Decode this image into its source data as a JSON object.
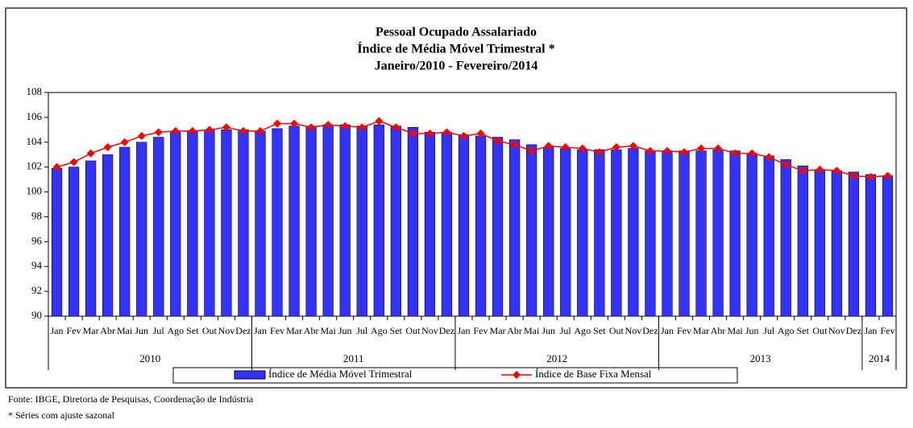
{
  "chart_data": {
    "type": "bar-line",
    "title": [
      "Pessoal Ocupado Assalariado",
      "Índice de Média Móvel Trimestral *",
      "Janeiro/2010 - Fevereiro/2014"
    ],
    "categories": [
      "Jan",
      "Fev",
      "Mar",
      "Abr",
      "Mai",
      "Jun",
      "Jul",
      "Ago",
      "Set",
      "Out",
      "Nov",
      "Dez",
      "Jan",
      "Fev",
      "Mar",
      "Abr",
      "Mai",
      "Jun",
      "Jul",
      "Ago",
      "Set",
      "Out",
      "Nov",
      "Dez",
      "Jan",
      "Fev",
      "Mar",
      "Abr",
      "Mai",
      "Jun",
      "Jul",
      "Ago",
      "Set",
      "Out",
      "Nov",
      "Dez",
      "Jan",
      "Fev",
      "Mar",
      "Abr",
      "Mai",
      "Jun",
      "Jul",
      "Ago",
      "Set",
      "Out",
      "Nov",
      "Dez",
      "Jan",
      "Fev"
    ],
    "year_labels": [
      "2010",
      null,
      null,
      null,
      null,
      null,
      null,
      null,
      null,
      null,
      null,
      null,
      "2011",
      null,
      null,
      null,
      null,
      null,
      null,
      null,
      null,
      null,
      null,
      null,
      "2012",
      null,
      null,
      null,
      null,
      null,
      null,
      null,
      null,
      null,
      null,
      null,
      "2013",
      null,
      null,
      null,
      null,
      null,
      null,
      null,
      null,
      null,
      null,
      null,
      "2014",
      null
    ],
    "series": [
      {
        "name": "Índice de Média Móvel Trimestral",
        "kind": "bar",
        "color": "#3333ff",
        "values": [
          101.9,
          102.0,
          102.5,
          103.0,
          103.6,
          104.0,
          104.4,
          104.8,
          104.9,
          105.0,
          105.0,
          105.0,
          104.9,
          105.1,
          105.3,
          105.3,
          105.4,
          105.4,
          105.3,
          105.4,
          105.3,
          105.2,
          104.8,
          104.8,
          104.6,
          104.5,
          104.4,
          104.2,
          103.8,
          103.6,
          103.5,
          103.4,
          103.4,
          103.4,
          103.5,
          103.3,
          103.3,
          103.3,
          103.3,
          103.4,
          103.3,
          103.1,
          102.9,
          102.6,
          102.1,
          101.8,
          101.7,
          101.6,
          101.4,
          101.3
        ]
      },
      {
        "name": "Índice de Base Fixa Mensal",
        "kind": "line",
        "color": "#ff0000",
        "values": [
          102.0,
          102.4,
          103.1,
          103.6,
          104.0,
          104.5,
          104.8,
          104.9,
          104.9,
          105.0,
          105.2,
          104.9,
          104.9,
          105.5,
          105.5,
          105.2,
          105.4,
          105.3,
          105.2,
          105.7,
          105.2,
          104.7,
          104.7,
          104.8,
          104.5,
          104.7,
          104.1,
          103.8,
          103.3,
          103.7,
          103.6,
          103.5,
          103.2,
          103.6,
          103.7,
          103.3,
          103.3,
          103.2,
          103.5,
          103.5,
          103.1,
          103.1,
          102.8,
          102.2,
          101.7,
          101.8,
          101.7,
          101.3,
          101.2,
          101.3
        ]
      }
    ],
    "ylim": [
      90,
      108
    ],
    "yticks": [
      90,
      92,
      94,
      96,
      98,
      100,
      102,
      104,
      106,
      108
    ],
    "legend": "bottom",
    "notes": [
      "Fonte: IBGE, Diretoria de Pesquisas, Coordenação de Indústria",
      "* Séries com ajuste sazonal"
    ]
  }
}
